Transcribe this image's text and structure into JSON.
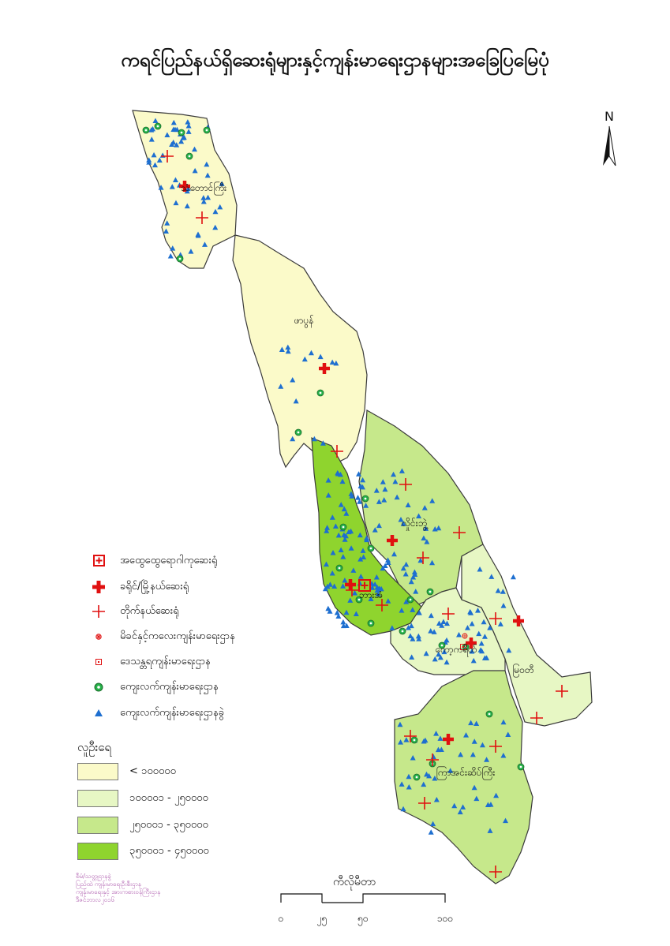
{
  "title": "ကရင်ပြည်နယ်ရှိဆေးရုံများနှင့်ကျန်းမာရေးဌာနများအခြေပြမြေပုံ",
  "north_label": "N",
  "districts": [
    {
      "name": "သံတောင်ကြီး",
      "population_class": 0
    },
    {
      "name": "ဖာပွန်",
      "population_class": 0
    },
    {
      "name": "လှိုင်းဘွဲ့",
      "population_class": 2
    },
    {
      "name": "ဘားအံ",
      "population_class": 3
    },
    {
      "name": "ကော့ကရိတ်",
      "population_class": 1
    },
    {
      "name": "မြဝတီ",
      "population_class": 1
    },
    {
      "name": "ကြာအင်းဆိပ်ကြီး",
      "population_class": 2
    }
  ],
  "facility_legend": [
    {
      "icon": "general-hospital-icon",
      "label": "အထွေထွေရောဂါကုဆေးရုံ"
    },
    {
      "icon": "district-hospital-icon",
      "label": "ခရိုင်/မြို့နယ်ဆေးရုံ"
    },
    {
      "icon": "station-hospital-icon",
      "label": "တိုက်နယ်ဆေးရုံ"
    },
    {
      "icon": "maternal-child-health-icon",
      "label": "မိခင်နှင့်ကလေးကျန်းမာရေးဌာန"
    },
    {
      "icon": "urban-health-center-icon",
      "label": "ဒေသန္တရကျန်းမာရေးဌာန"
    },
    {
      "icon": "rural-health-center-icon",
      "label": "ကျေးလက်ကျန်းမာရေးဌာန"
    },
    {
      "icon": "rural-health-subcenter-icon",
      "label": "ကျေးလက်ကျန်းမာရေးဌာနခွဲ"
    }
  ],
  "population_title": "လူဦးရေ",
  "population_classes": [
    {
      "label": "< ၁၀၀၀၀၀",
      "color": "#fbfac9"
    },
    {
      "label": "၁၀၀၀၀၁  -  ၂၅၀၀၀၀",
      "color": "#e7f7c4"
    },
    {
      "label": "၂၅၀၀၀၁  -  ၃၅၀၀၀၀",
      "color": "#c6e88b"
    },
    {
      "label": "၃၅၀၀၀၁  -  ၄၅၀၀၀၀",
      "color": "#8fd42e"
    }
  ],
  "scale": {
    "label": "ကီလိုမီတာ",
    "ticks": [
      "၀",
      "၂၅",
      "၅၀",
      "၁၀၀"
    ]
  },
  "source_lines": [
    "စီမံ/သတ္တုဌာနခွဲ",
    "ပြည်ထဲ ကျန်းမာရေးဦးစီးဌာန",
    "ကျန်းမာရေးနှင့် အားကစားဝန်ကြီးဌာန",
    "ဒီဇင်ဘာလ၂၀၁၆"
  ],
  "colors": {
    "district_border": "#3a3a3a",
    "hospital_red": "#e01010",
    "health_green": "#27b24a",
    "subcenter_blue": "#1e6fd0"
  }
}
